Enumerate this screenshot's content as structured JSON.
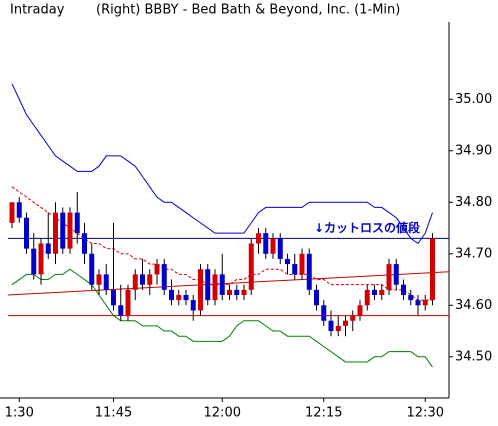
{
  "chart_data": {
    "type": "candlestick",
    "title": "Intraday",
    "subtitle": "(Right)  BBBY - Bed Bath & Beyond, Inc.  (1-Min)",
    "annotation": "↓カットロスの値段",
    "categories": [
      null,
      "1:30",
      null,
      null,
      null,
      null,
      null,
      null,
      null,
      null,
      null,
      null,
      null,
      null,
      "11:45",
      null,
      null,
      null,
      null,
      null,
      null,
      null,
      null,
      null,
      null,
      null,
      null,
      null,
      null,
      "12:00",
      null,
      null,
      null,
      null,
      null,
      null,
      null,
      null,
      null,
      null,
      null,
      null,
      null,
      "12:15",
      null,
      null,
      null,
      null,
      null,
      null,
      null,
      null,
      null,
      null,
      null,
      null,
      null,
      "12:30",
      null
    ],
    "ohlc": [
      [
        34.76,
        34.8,
        34.75,
        34.8
      ],
      [
        34.8,
        34.81,
        34.76,
        34.77
      ],
      [
        34.77,
        34.78,
        34.7,
        34.71
      ],
      [
        34.71,
        34.74,
        34.65,
        34.66
      ],
      [
        34.66,
        34.73,
        34.64,
        34.72
      ],
      [
        34.72,
        34.78,
        34.69,
        34.7
      ],
      [
        34.7,
        34.8,
        34.68,
        34.78
      ],
      [
        34.78,
        34.79,
        34.7,
        34.71
      ],
      [
        34.71,
        34.79,
        34.7,
        34.78
      ],
      [
        34.78,
        34.82,
        34.72,
        34.74
      ],
      [
        34.74,
        34.76,
        34.68,
        34.7
      ],
      [
        34.7,
        34.72,
        34.63,
        34.64
      ],
      [
        34.64,
        34.67,
        34.62,
        34.66
      ],
      [
        34.66,
        34.68,
        34.62,
        34.63
      ],
      [
        34.63,
        34.76,
        34.59,
        34.6
      ],
      [
        34.6,
        34.64,
        34.57,
        34.58
      ],
      [
        34.58,
        34.64,
        34.57,
        34.63
      ],
      [
        34.63,
        34.67,
        34.61,
        34.66
      ],
      [
        34.66,
        34.69,
        34.63,
        34.64
      ],
      [
        34.64,
        34.67,
        34.62,
        34.66
      ],
      [
        34.66,
        34.69,
        34.64,
        34.68
      ],
      [
        34.68,
        34.69,
        34.62,
        34.63
      ],
      [
        34.63,
        34.65,
        34.6,
        34.61
      ],
      [
        34.61,
        34.63,
        34.6,
        34.62
      ],
      [
        34.62,
        34.63,
        34.6,
        34.61
      ],
      [
        34.61,
        34.62,
        34.57,
        34.59
      ],
      [
        34.59,
        34.68,
        34.58,
        34.67
      ],
      [
        34.67,
        34.68,
        34.6,
        34.61
      ],
      [
        34.61,
        34.67,
        34.6,
        34.66
      ],
      [
        34.66,
        34.7,
        34.61,
        34.62
      ],
      [
        34.62,
        34.64,
        34.61,
        34.63
      ],
      [
        34.63,
        34.64,
        34.61,
        34.62
      ],
      [
        34.62,
        34.64,
        34.61,
        34.63
      ],
      [
        34.63,
        34.73,
        34.62,
        34.72
      ],
      [
        34.72,
        34.75,
        34.7,
        34.74
      ],
      [
        34.74,
        34.75,
        34.69,
        34.7
      ],
      [
        34.7,
        34.74,
        34.69,
        34.73
      ],
      [
        34.73,
        34.74,
        34.68,
        34.69
      ],
      [
        34.69,
        34.7,
        34.66,
        34.68
      ],
      [
        34.68,
        34.7,
        34.65,
        34.66
      ],
      [
        34.66,
        34.71,
        34.65,
        34.7
      ],
      [
        34.7,
        34.71,
        34.62,
        34.63
      ],
      [
        34.63,
        34.64,
        34.59,
        34.6
      ],
      [
        34.6,
        34.61,
        34.56,
        34.57
      ],
      [
        34.57,
        34.59,
        34.54,
        34.55
      ],
      [
        34.55,
        34.58,
        34.54,
        34.56
      ],
      [
        34.56,
        34.58,
        34.54,
        34.57
      ],
      [
        34.57,
        34.59,
        34.55,
        34.58
      ],
      [
        34.58,
        34.61,
        34.57,
        34.6
      ],
      [
        34.6,
        34.64,
        34.59,
        34.63
      ],
      [
        34.63,
        34.64,
        34.61,
        34.62
      ],
      [
        34.62,
        34.64,
        34.61,
        34.63
      ],
      [
        34.63,
        34.69,
        34.62,
        34.68
      ],
      [
        34.68,
        34.69,
        34.63,
        34.64
      ],
      [
        34.64,
        34.65,
        34.61,
        34.62
      ],
      [
        34.62,
        34.63,
        34.6,
        34.61
      ],
      [
        34.61,
        34.62,
        34.58,
        34.6
      ],
      [
        34.6,
        34.62,
        34.59,
        34.61
      ],
      [
        34.61,
        34.74,
        34.6,
        34.73
      ]
    ],
    "up_color": "#d40000",
    "down_color": "#0000c8",
    "upper_band": {
      "color": "#0000cc",
      "values": [
        35.03,
        35.0,
        34.97,
        34.95,
        34.93,
        34.91,
        34.89,
        34.88,
        34.87,
        34.86,
        34.86,
        34.86,
        34.87,
        34.89,
        34.89,
        34.89,
        34.88,
        34.87,
        34.85,
        34.83,
        34.81,
        34.8,
        34.8,
        34.79,
        34.78,
        34.77,
        34.76,
        34.75,
        34.74,
        34.74,
        34.74,
        34.74,
        34.74,
        34.76,
        34.78,
        34.79,
        34.79,
        34.79,
        34.79,
        34.79,
        34.79,
        34.8,
        34.8,
        34.8,
        34.8,
        34.8,
        34.8,
        34.8,
        34.8,
        34.8,
        34.79,
        34.79,
        34.78,
        34.77,
        34.75,
        34.73,
        34.72,
        34.74,
        34.78
      ]
    },
    "lower_band": {
      "color": "#008000",
      "values": [
        34.64,
        34.65,
        34.66,
        34.66,
        34.65,
        34.65,
        34.66,
        34.66,
        34.67,
        34.66,
        34.65,
        34.64,
        34.62,
        34.6,
        34.58,
        34.57,
        34.57,
        34.57,
        34.56,
        34.56,
        34.56,
        34.55,
        34.55,
        34.54,
        34.54,
        34.53,
        34.53,
        34.53,
        34.53,
        34.53,
        34.54,
        34.56,
        34.57,
        34.57,
        34.57,
        34.56,
        34.55,
        34.55,
        34.54,
        34.54,
        34.54,
        34.54,
        34.53,
        34.52,
        34.51,
        34.5,
        34.49,
        34.49,
        34.49,
        34.49,
        34.5,
        34.5,
        34.51,
        34.51,
        34.51,
        34.51,
        34.5,
        34.5,
        34.48
      ]
    },
    "moving_average": {
      "color": "#dd0000",
      "dashed": true,
      "values": [
        34.83,
        34.82,
        34.81,
        34.8,
        34.79,
        34.78,
        34.77,
        34.76,
        34.75,
        34.74,
        34.73,
        34.72,
        34.72,
        34.71,
        34.71,
        34.7,
        34.7,
        34.69,
        34.69,
        34.68,
        34.68,
        34.67,
        34.67,
        34.66,
        34.66,
        34.65,
        34.65,
        34.64,
        34.64,
        34.64,
        34.64,
        34.65,
        34.65,
        34.66,
        34.66,
        34.67,
        34.67,
        34.67,
        34.66,
        34.66,
        34.66,
        34.66,
        34.65,
        34.65,
        34.64,
        34.64,
        34.64,
        34.64,
        34.64,
        34.64,
        34.64,
        34.64,
        34.63,
        34.63,
        34.63,
        34.62,
        34.61,
        34.61,
        34.61
      ]
    },
    "trend_line": {
      "color": "#cc0000",
      "values": [
        34.62,
        34.665
      ]
    },
    "hlines": [
      {
        "value": 34.73,
        "color": "#000080"
      },
      {
        "value": 34.58,
        "color": "#cc0000"
      }
    ],
    "ylim": [
      34.42,
      35.15
    ],
    "yticks": [
      {
        "value": 34.5,
        "label": "34.50"
      },
      {
        "value": 34.6,
        "label": "34.60"
      },
      {
        "value": 34.7,
        "label": "34.70"
      },
      {
        "value": 34.8,
        "label": "34.80"
      },
      {
        "value": 34.9,
        "label": "34.90"
      },
      {
        "value": 35.0,
        "label": "35.00"
      }
    ]
  }
}
